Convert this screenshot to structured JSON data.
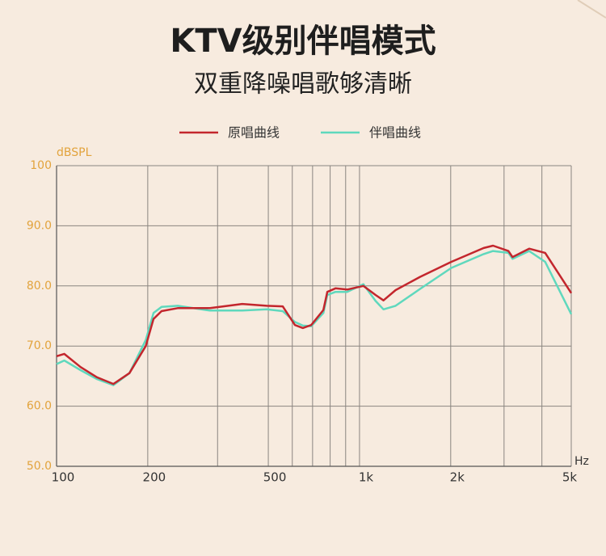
{
  "chart_data": {
    "type": "line",
    "title": "KTV级别伴唱模式",
    "subtitle": "双重降噪唱歌够清晰",
    "y_label": "dBSPL",
    "x_label": "Hz",
    "x_log": true,
    "grid": true,
    "x": [
      100,
      106,
      120,
      136,
      154,
      174,
      197,
      209,
      222,
      251,
      321,
      410,
      494,
      558,
      612,
      650,
      693,
      760,
      783,
      833,
      910,
      1030,
      1130,
      1200,
      1316,
      1585,
      2010,
      2570,
      2760,
      3100,
      3200,
      3630,
      4100,
      5000
    ],
    "series": [
      {
        "name": "原唱曲线",
        "color": "#c3262d",
        "values": [
          68.3,
          68.7,
          66.5,
          64.8,
          63.7,
          65.5,
          70,
          74.5,
          75.8,
          76.3,
          76.3,
          77.0,
          76.7,
          76.6,
          73.5,
          73.0,
          73.5,
          76,
          79,
          79.6,
          79.4,
          80.0,
          78.5,
          77.6,
          79.3,
          81.5,
          84,
          86.3,
          86.7,
          85.8,
          84.8,
          86.2,
          85.5,
          78.8
        ]
      },
      {
        "name": "伴唱曲线",
        "color": "#5fd8bd",
        "values": [
          67.0,
          67.6,
          66.0,
          64.5,
          63.5,
          65.5,
          71,
          75.5,
          76.5,
          76.7,
          75.9,
          75.9,
          76.1,
          75.8,
          74,
          73.4,
          73.3,
          75.5,
          78.5,
          79,
          79.0,
          80.3,
          77.5,
          76.1,
          76.7,
          79.5,
          83,
          85.3,
          85.8,
          85.5,
          84.5,
          85.8,
          84.0,
          75.3
        ]
      }
    ],
    "xlim": [
      100,
      5000
    ],
    "xticks": [
      100,
      200,
      500,
      {
        "value": 1000,
        "label": "1k"
      },
      {
        "value": 2000,
        "label": "2k"
      },
      {
        "value": 5000,
        "label": "5k"
      }
    ],
    "xminor": [
      340,
      600,
      700,
      800,
      900,
      3000,
      4000
    ],
    "ylim": [
      50,
      100
    ],
    "yticks": [
      {
        "value": 50,
        "label": "50.0"
      },
      {
        "value": 60,
        "label": "60.0"
      },
      {
        "value": 70,
        "label": "70.0"
      },
      {
        "value": 80,
        "label": "80.0"
      },
      {
        "value": 90,
        "label": "90.0"
      },
      100
    ]
  }
}
